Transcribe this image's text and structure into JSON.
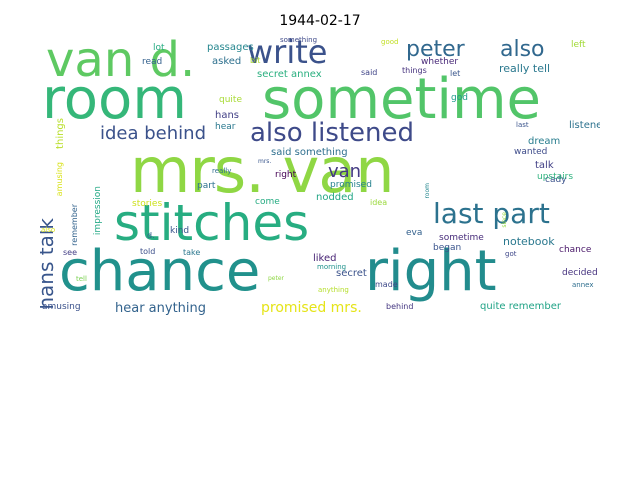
{
  "title": "1944-02-17",
  "words": [
    {
      "text": "mrs. van",
      "color": "#8fd744"
    },
    {
      "text": "room",
      "color": "#35b779"
    },
    {
      "text": "sometime",
      "color": "#52c569"
    },
    {
      "text": "chance",
      "color": "#21918c"
    },
    {
      "text": "right",
      "color": "#228c8d"
    },
    {
      "text": "stitches",
      "color": "#27ad81"
    },
    {
      "text": "van d.",
      "color": "#5ec962"
    },
    {
      "text": "write",
      "color": "#3b528b"
    },
    {
      "text": "also listened",
      "color": "#3e4a89"
    },
    {
      "text": "last part",
      "color": "#2c728e"
    },
    {
      "text": "peter",
      "color": "#31688e"
    },
    {
      "text": "also",
      "color": "#31688e"
    },
    {
      "text": "idea behind",
      "color": "#3b528b"
    },
    {
      "text": "hans talk",
      "color": "#39568c"
    },
    {
      "text": "van",
      "color": "#443a83"
    },
    {
      "text": "promised mrs.",
      "color": "#e5e419"
    },
    {
      "text": "hear anything",
      "color": "#33638d"
    },
    {
      "text": "really tell",
      "color": "#2a788e"
    },
    {
      "text": "passages",
      "color": "#24868e"
    },
    {
      "text": "secret annex",
      "color": "#29af7f"
    },
    {
      "text": "asked",
      "color": "#2d708e"
    },
    {
      "text": "hans",
      "color": "#424086"
    },
    {
      "text": "quite",
      "color": "#a8db34"
    },
    {
      "text": "hear",
      "color": "#2a788e"
    },
    {
      "text": "said something",
      "color": "#2e6f8e"
    },
    {
      "text": "right",
      "color": "#440154"
    },
    {
      "text": "promised",
      "color": "#26828e"
    },
    {
      "text": "come",
      "color": "#25ab82"
    },
    {
      "text": "nodded",
      "color": "#21a585"
    },
    {
      "text": "liked",
      "color": "#482475"
    },
    {
      "text": "secret",
      "color": "#3b528b"
    },
    {
      "text": "anything",
      "color": "#b5de2b"
    },
    {
      "text": "made",
      "color": "#3e4989"
    },
    {
      "text": "behind",
      "color": "#453781"
    },
    {
      "text": "quite remember",
      "color": "#20a386"
    },
    {
      "text": "amusing",
      "color": "#3b528b"
    },
    {
      "text": "kind",
      "color": "#3a548c"
    },
    {
      "text": "stories",
      "color": "#cde11d"
    },
    {
      "text": "part",
      "color": "#2c718e"
    },
    {
      "text": "remember",
      "color": "#33638d"
    },
    {
      "text": "impression",
      "color": "#22a884"
    },
    {
      "text": "things",
      "color": "#b8de29"
    },
    {
      "text": "amusing",
      "color": "#d8e219"
    },
    {
      "text": "also",
      "color": "#d8e219"
    },
    {
      "text": "see",
      "color": "#433e85"
    },
    {
      "text": "told",
      "color": "#3c4f8a"
    },
    {
      "text": "take",
      "color": "#2a778e"
    },
    {
      "text": "d.",
      "color": "#35608d"
    },
    {
      "text": "tell",
      "color": "#7ad151"
    },
    {
      "text": "peter",
      "color": "#8fd744"
    },
    {
      "text": "really",
      "color": "#2e6e8e"
    },
    {
      "text": "mrs.",
      "color": "#39568c"
    },
    {
      "text": "morning",
      "color": "#20928c"
    },
    {
      "text": "began",
      "color": "#3a548c"
    },
    {
      "text": "eva",
      "color": "#34618d"
    },
    {
      "text": "sometime",
      "color": "#472c7a"
    },
    {
      "text": "idea",
      "color": "#9bd93c"
    },
    {
      "text": "room",
      "color": "#24878e"
    },
    {
      "text": "notebook",
      "color": "#2a788e"
    },
    {
      "text": "chance",
      "color": "#481668"
    },
    {
      "text": "decided",
      "color": "#46337f"
    },
    {
      "text": "annex",
      "color": "#2e6e8e"
    },
    {
      "text": "got",
      "color": "#3f4889"
    },
    {
      "text": "since",
      "color": "#95d840"
    },
    {
      "text": "talk",
      "color": "#424086"
    },
    {
      "text": "cady",
      "color": "#3b528b"
    },
    {
      "text": "upstairs",
      "color": "#2db27d"
    },
    {
      "text": "wanted",
      "color": "#3e4c8a"
    },
    {
      "text": "dream",
      "color": "#287d8e"
    },
    {
      "text": "listened",
      "color": "#2c728e"
    },
    {
      "text": "last",
      "color": "#3a548c"
    },
    {
      "text": "god",
      "color": "#1f9a8a"
    },
    {
      "text": "lot",
      "color": "#25ab82"
    },
    {
      "text": "read",
      "color": "#34618d"
    },
    {
      "text": "bit",
      "color": "#addc30"
    },
    {
      "text": "something",
      "color": "#3e4989"
    },
    {
      "text": "good",
      "color": "#c2df23"
    },
    {
      "text": "left",
      "color": "#a2da37"
    },
    {
      "text": "whether",
      "color": "#482878"
    },
    {
      "text": "said",
      "color": "#404588"
    },
    {
      "text": "things",
      "color": "#46327e"
    },
    {
      "text": "let",
      "color": "#39568c"
    }
  ]
}
